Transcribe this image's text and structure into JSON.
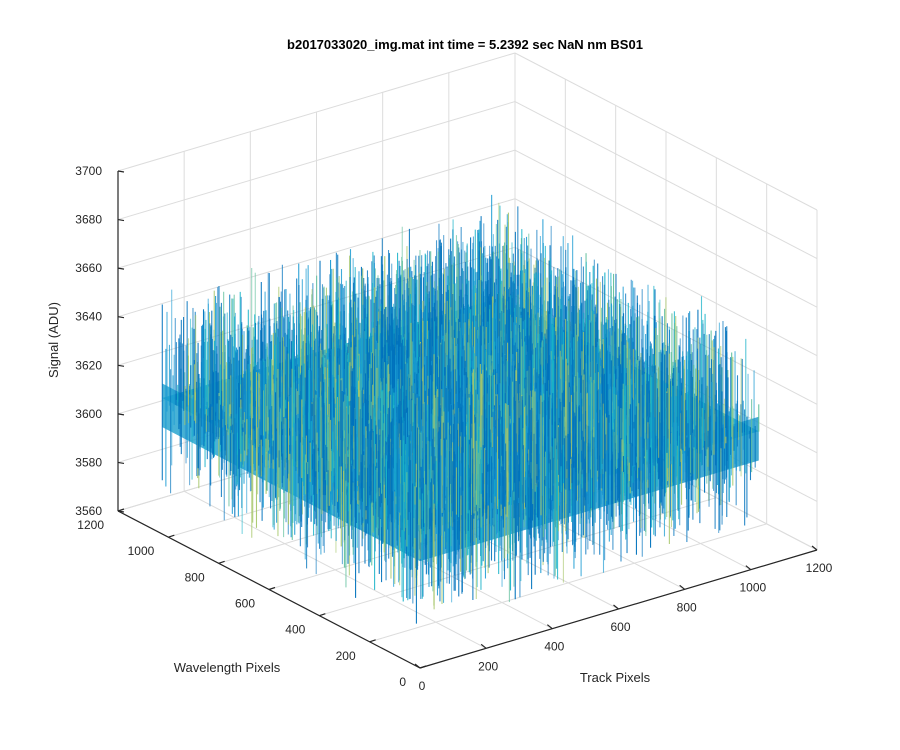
{
  "chart_data": {
    "type": "surface",
    "title": "b2017033020_img.mat int time = 5.2392 sec  NaN nm BS01",
    "xlabel": "Track Pixels",
    "ylabel": "Wavelength Pixels",
    "zlabel": "Signal (ADU)",
    "xlim": [
      0,
      1200
    ],
    "ylim": [
      0,
      1200
    ],
    "zlim": [
      3560,
      3700
    ],
    "xticks": [
      0,
      200,
      400,
      600,
      800,
      1000,
      1200
    ],
    "yticks": [
      0,
      200,
      400,
      600,
      800,
      1000,
      1200
    ],
    "zticks": [
      3560,
      3580,
      3600,
      3620,
      3640,
      3660,
      3680,
      3700
    ],
    "data_extent": {
      "x": [
        0,
        1024
      ],
      "y": [
        0,
        1024
      ]
    },
    "signal": {
      "mean": 3616,
      "noise_min": 3575,
      "noise_max": 3660
    },
    "grid": true,
    "colormap": [
      "#0072bd",
      "#1a9bd3",
      "#19b3c9",
      "#5fbf9c",
      "#a7c76b"
    ]
  }
}
